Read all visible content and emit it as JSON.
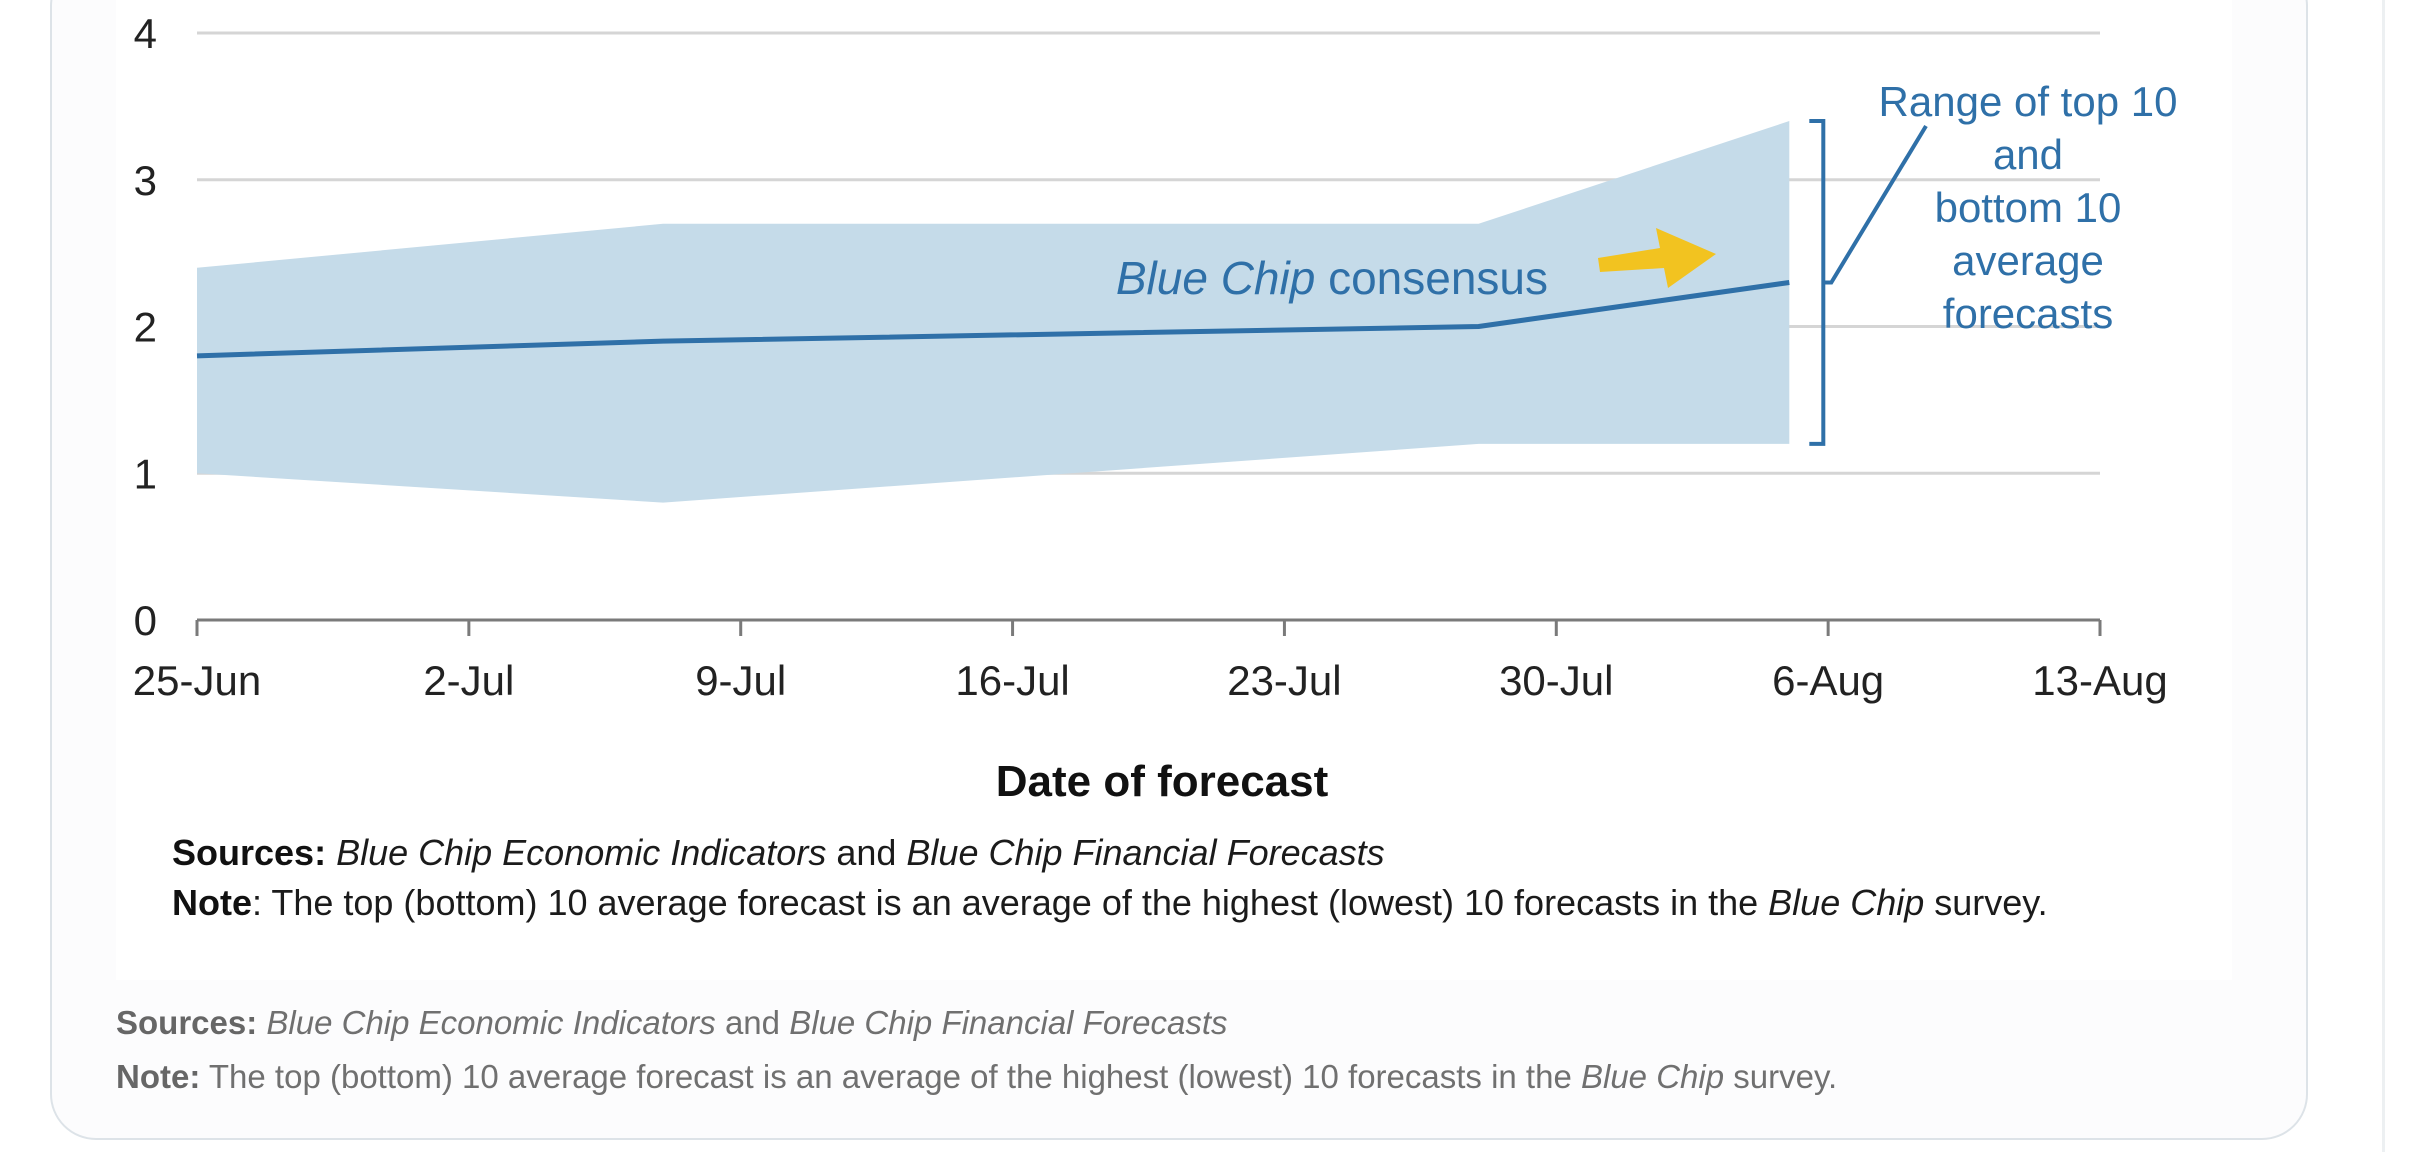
{
  "colors": {
    "band": "#c5dbe9",
    "line": "#2f70a8",
    "annotation": "#2f70a8",
    "arrow": "#f2c320",
    "grid": "#d5d5d5",
    "axis": "#7a7a7a",
    "text": "#222222"
  },
  "chart_data": {
    "type": "area",
    "title": "",
    "xlabel": "Date of forecast",
    "ylabel": "",
    "ylim": [
      0,
      4
    ],
    "yticks": [
      "0",
      "1",
      "2",
      "3",
      "4"
    ],
    "xlim": [
      "25-Jun",
      "13-Aug"
    ],
    "xticks": [
      "25-Jun",
      "2-Jul",
      "9-Jul",
      "16-Jul",
      "23-Jul",
      "30-Jul",
      "6-Aug",
      "13-Aug"
    ],
    "grid": true,
    "series": [
      {
        "name": "Blue Chip consensus",
        "kind": "line",
        "x": [
          "25-Jun",
          "7-Jul",
          "28-Jul",
          "5-Aug"
        ],
        "values": [
          1.8,
          1.9,
          2.0,
          2.3
        ]
      },
      {
        "name": "Range of top 10 and bottom 10 average forecasts",
        "kind": "band",
        "x": [
          "25-Jun",
          "7-Jul",
          "28-Jul",
          "5-Aug"
        ],
        "upper": [
          2.4,
          2.7,
          2.7,
          3.4
        ],
        "lower": [
          1.0,
          0.8,
          1.2,
          1.2
        ]
      }
    ],
    "annotations": {
      "consensus_label_italic": "Blue Chip",
      "consensus_label_rest": " consensus",
      "range_label_lines": [
        "Range of top 10",
        "and",
        "bottom 10",
        "average",
        "forecasts"
      ]
    }
  },
  "figure_notes": {
    "sources_label": "Sources:",
    "source_1": "Blue Chip Economic Indicators",
    "and": " and ",
    "source_2": "Blue Chip Financial Forecasts",
    "note_label": "Note",
    "note_text_1": ": The top (bottom) 10 average forecast is an average of the highest (lowest) 10 forecasts in the ",
    "note_italic": "Blue Chip",
    "note_text_2": " survey."
  },
  "caption": {
    "sources_label": "Sources:",
    "source_1": "Blue Chip Economic Indicators",
    "and": " and ",
    "source_2": "Blue Chip Financial Forecasts",
    "note_label": "Note:",
    "note_text_1": " The top (bottom) 10 average forecast is an average of the highest (lowest) 10 forecasts in the ",
    "note_italic": "Blue Chip",
    "note_text_2": " survey."
  }
}
